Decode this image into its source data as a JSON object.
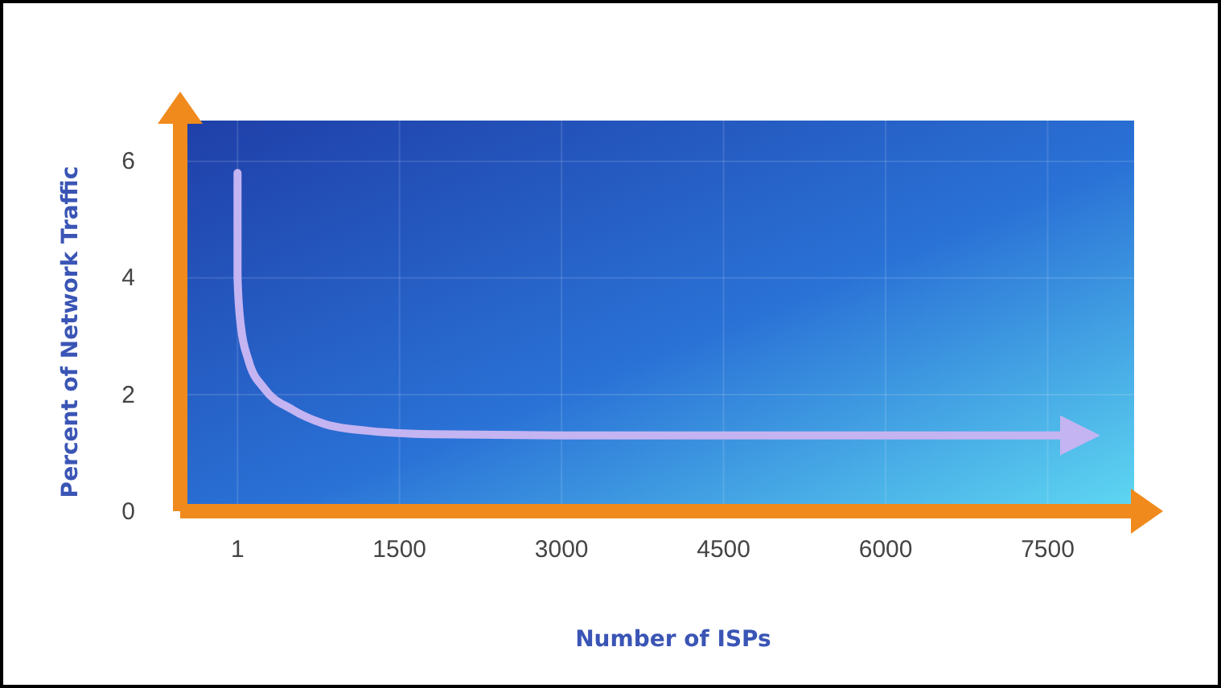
{
  "chart_data": {
    "type": "line",
    "xlabel": "Number of ISPs",
    "ylabel": "Percent of Network Traffic",
    "x": [
      1,
      1,
      30,
      100,
      250,
      500,
      800,
      1200,
      1800,
      3000,
      7800
    ],
    "series": [
      {
        "color": "#c4b4f2",
        "values": [
          5.8,
          4.0,
          3.2,
          2.6,
          2.1,
          1.75,
          1.5,
          1.38,
          1.32,
          1.3,
          1.3
        ]
      }
    ],
    "xlim": [
      -530,
      8300
    ],
    "ylim": [
      0,
      6.7
    ],
    "xticks": [
      1,
      1500,
      3000,
      4500,
      6000,
      7500
    ],
    "yticks": [
      0,
      2,
      4,
      6
    ],
    "grid": true,
    "marker": "none",
    "line_style": "solid"
  }
}
